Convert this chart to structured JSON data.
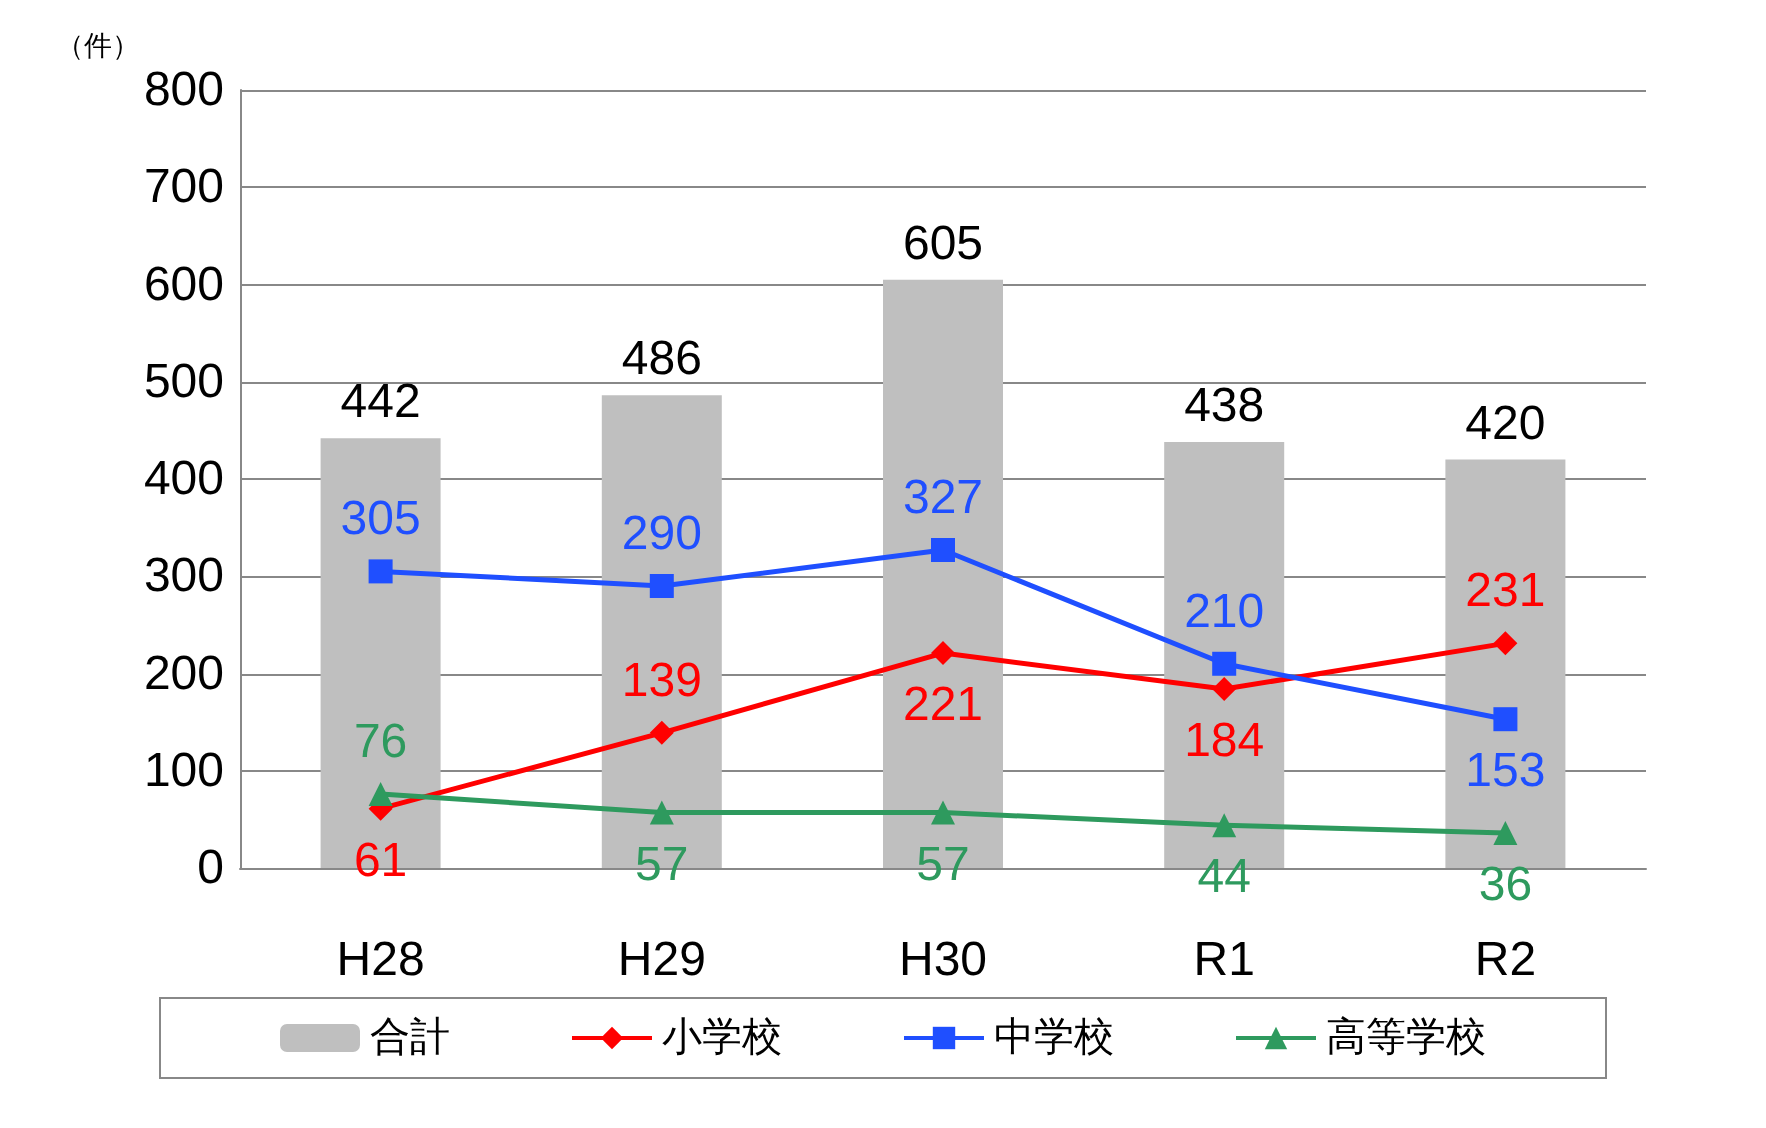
{
  "chart_data": {
    "type": "bar",
    "ylabel": "（件）",
    "categories": [
      "H28",
      "H29",
      "H30",
      "R1",
      "R2"
    ],
    "series": [
      {
        "name": "合計",
        "color": "#bfbfbf",
        "values": [
          442,
          486,
          605,
          438,
          420
        ]
      },
      {
        "name": "小学校",
        "type": "line",
        "color": "#ff0000",
        "marker": "diamond",
        "values": [
          61,
          139,
          221,
          184,
          231
        ]
      },
      {
        "name": "中学校",
        "type": "line",
        "color": "#1f4fff",
        "marker": "square",
        "values": [
          305,
          290,
          327,
          210,
          153
        ]
      },
      {
        "name": "高等学校",
        "type": "line",
        "color": "#2e9a5e",
        "marker": "triangle",
        "values": [
          76,
          57,
          57,
          44,
          36
        ]
      }
    ],
    "ylim": [
      0,
      800
    ],
    "yticks": [
      0,
      100,
      200,
      300,
      400,
      500,
      600,
      700,
      800
    ],
    "grid": "y",
    "legend": "bottom",
    "data_labels": true
  }
}
